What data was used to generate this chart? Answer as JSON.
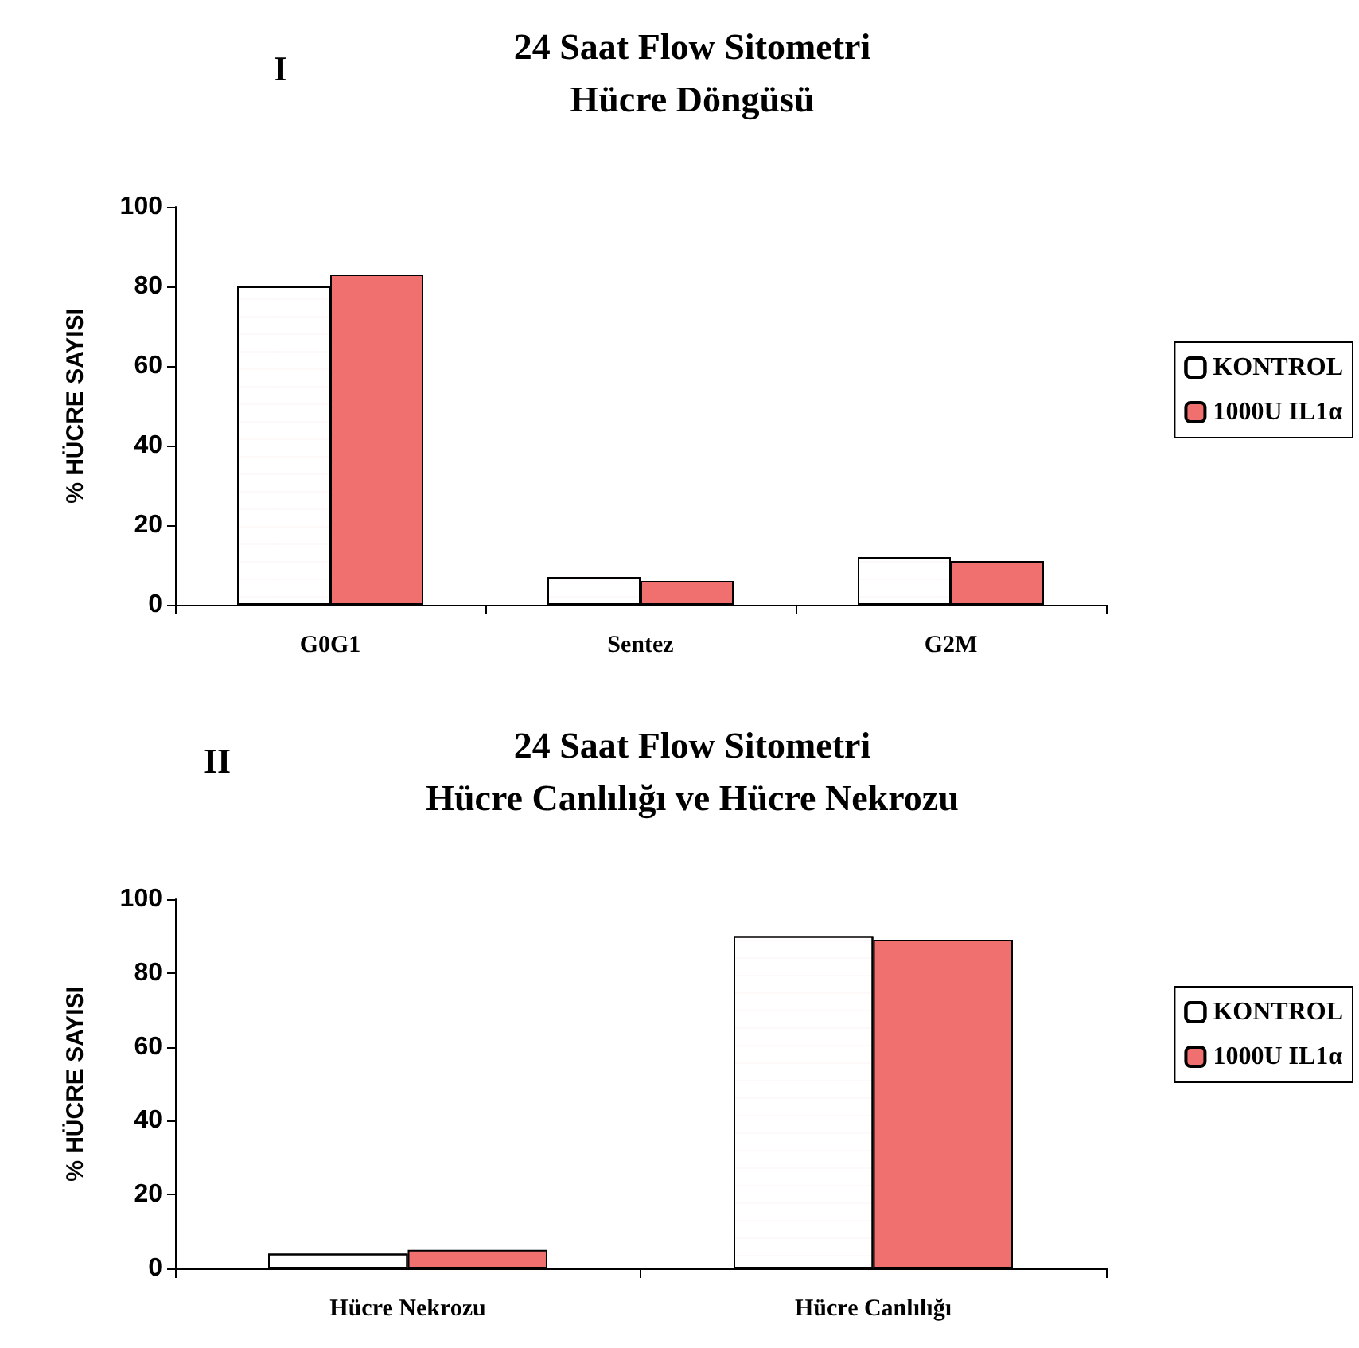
{
  "chart_data": [
    {
      "type": "bar",
      "title": "24 Saat Flow Sitometri\nHücre Döngüsü",
      "ylabel": "% HÜCRE SAYISI",
      "annotations": [
        "I"
      ],
      "categories": [
        "G0G1",
        "Sentez",
        "G2M"
      ],
      "series": [
        {
          "name": "KONTROL",
          "color": "#ffffff",
          "values": [
            80,
            7,
            12
          ]
        },
        {
          "name": "1000U IL1α",
          "color": "#f07070",
          "values": [
            83,
            6,
            11
          ]
        }
      ],
      "ylim": [
        0,
        100
      ],
      "yticks": [
        0,
        20,
        40,
        60,
        80,
        100
      ],
      "grid": false,
      "legend": "right"
    },
    {
      "type": "bar",
      "title": "24 Saat Flow Sitometri\nHücre Canlılığı ve Hücre Nekrozu",
      "ylabel": "% HÜCRE SAYISI",
      "annotations": [
        "II"
      ],
      "categories": [
        "Hücre Nekrozu",
        "Hücre Canlılığı"
      ],
      "series": [
        {
          "name": "KONTROL",
          "color": "#ffffff",
          "values": [
            4,
            90
          ]
        },
        {
          "name": "1000U IL1α",
          "color": "#f07070",
          "values": [
            5,
            89
          ]
        }
      ],
      "ylim": [
        0,
        100
      ],
      "yticks": [
        0,
        20,
        40,
        60,
        80,
        100
      ],
      "grid": false,
      "legend": "right"
    }
  ]
}
